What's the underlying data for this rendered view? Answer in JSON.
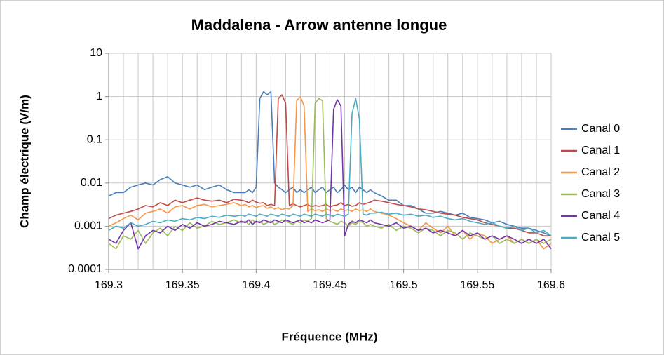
{
  "chart_data": {
    "type": "line",
    "title": "Maddalena - Arrow antenne longue",
    "x_label": "Fréquence (MHz)",
    "y_label": "Champ électrique (V/m)",
    "log_y": true,
    "grid": true,
    "xgrid_step": 0.01,
    "legend": "right",
    "xlim": [
      169.3,
      169.6
    ],
    "xticks": [
      169.3,
      169.35,
      169.4,
      169.45,
      169.5,
      169.55,
      169.6
    ],
    "ylim": [
      0.0001,
      10
    ],
    "yticks": [
      0.0001,
      0.001,
      0.01,
      0.1,
      1,
      10
    ],
    "x": [
      169.3,
      169.305,
      169.31,
      169.315,
      169.32,
      169.325,
      169.33,
      169.335,
      169.34,
      169.345,
      169.35,
      169.355,
      169.36,
      169.365,
      169.37,
      169.375,
      169.38,
      169.385,
      169.39,
      169.3925,
      169.395,
      169.3975,
      169.4,
      169.4025,
      169.405,
      169.4075,
      169.41,
      169.4125,
      169.415,
      169.4175,
      169.42,
      169.4225,
      169.425,
      169.4275,
      169.43,
      169.4325,
      169.435,
      169.4375,
      169.44,
      169.4425,
      169.445,
      169.4475,
      169.45,
      169.4525,
      169.455,
      169.4575,
      169.46,
      169.4625,
      169.465,
      169.4675,
      169.47,
      169.4725,
      169.475,
      169.4775,
      169.48,
      169.485,
      169.49,
      169.495,
      169.5,
      169.505,
      169.51,
      169.515,
      169.52,
      169.525,
      169.53,
      169.535,
      169.54,
      169.545,
      169.55,
      169.555,
      169.56,
      169.565,
      169.57,
      169.575,
      169.58,
      169.585,
      169.59,
      169.595,
      169.6
    ],
    "series": [
      {
        "name": "Canal 0",
        "color": "#4a7ebb",
        "values": [
          0.005,
          0.006,
          0.006,
          0.008,
          0.009,
          0.01,
          0.009,
          0.012,
          0.014,
          0.01,
          0.009,
          0.008,
          0.009,
          0.007,
          0.008,
          0.009,
          0.007,
          0.006,
          0.006,
          0.006,
          0.007,
          0.006,
          0.008,
          0.9,
          1.3,
          1.1,
          1.3,
          0.01,
          0.008,
          0.007,
          0.006,
          0.007,
          0.008,
          0.006,
          0.007,
          0.006,
          0.007,
          0.008,
          0.006,
          0.007,
          0.008,
          0.006,
          0.007,
          0.008,
          0.006,
          0.007,
          0.009,
          0.007,
          0.008,
          0.006,
          0.008,
          0.007,
          0.006,
          0.007,
          0.006,
          0.005,
          0.004,
          0.004,
          0.003,
          0.003,
          0.0025,
          0.002,
          0.002,
          0.0022,
          0.002,
          0.0018,
          0.002,
          0.0016,
          0.0015,
          0.0014,
          0.0012,
          0.0013,
          0.0011,
          0.001,
          0.0009,
          0.0009,
          0.0008,
          0.0007,
          0.0006
        ]
      },
      {
        "name": "Canal 1",
        "color": "#be4b48",
        "values": [
          0.0015,
          0.0018,
          0.002,
          0.0022,
          0.0025,
          0.003,
          0.0028,
          0.0035,
          0.003,
          0.004,
          0.0035,
          0.004,
          0.0045,
          0.004,
          0.0038,
          0.004,
          0.0035,
          0.0042,
          0.004,
          0.0038,
          0.0035,
          0.004,
          0.0036,
          0.0034,
          0.0035,
          0.003,
          0.0032,
          0.003,
          0.9,
          1.1,
          0.7,
          0.003,
          0.0033,
          0.003,
          0.0028,
          0.003,
          0.0032,
          0.0028,
          0.003,
          0.0029,
          0.003,
          0.0032,
          0.0028,
          0.003,
          0.0031,
          0.0035,
          0.003,
          0.0032,
          0.0029,
          0.003,
          0.0035,
          0.0032,
          0.0034,
          0.0036,
          0.004,
          0.0038,
          0.0035,
          0.0032,
          0.003,
          0.0028,
          0.0025,
          0.0024,
          0.0022,
          0.002,
          0.0019,
          0.0018,
          0.0016,
          0.0015,
          0.0014,
          0.0012,
          0.0011,
          0.001,
          0.0009,
          0.0009,
          0.0008,
          0.0007,
          0.0007,
          0.0006,
          0.0006
        ]
      },
      {
        "name": "Canal 2",
        "color": "#f79646",
        "values": [
          0.001,
          0.0012,
          0.0015,
          0.0018,
          0.0014,
          0.002,
          0.0022,
          0.0025,
          0.002,
          0.0028,
          0.003,
          0.0025,
          0.003,
          0.0032,
          0.0028,
          0.003,
          0.0032,
          0.0035,
          0.003,
          0.0032,
          0.0028,
          0.003,
          0.0027,
          0.0029,
          0.003,
          0.0026,
          0.0028,
          0.0025,
          0.0027,
          0.0024,
          0.0026,
          0.0025,
          0.003,
          0.8,
          1.0,
          0.6,
          0.0022,
          0.0025,
          0.0023,
          0.0024,
          0.0022,
          0.0025,
          0.0023,
          0.0024,
          0.0022,
          0.0025,
          0.0023,
          0.0024,
          0.0022,
          0.0025,
          0.0023,
          0.0024,
          0.0022,
          0.0025,
          0.0022,
          0.002,
          0.0018,
          0.0015,
          0.0012,
          0.001,
          0.0008,
          0.0012,
          0.0009,
          0.0007,
          0.001,
          0.0006,
          0.0008,
          0.0005,
          0.0007,
          0.0006,
          0.0004,
          0.0005,
          0.0006,
          0.0004,
          0.0005,
          0.0004,
          0.0005,
          0.0003,
          0.0004
        ]
      },
      {
        "name": "Canal 3",
        "color": "#9bbb59",
        "values": [
          0.0004,
          0.0003,
          0.0006,
          0.0005,
          0.0008,
          0.0004,
          0.0007,
          0.0009,
          0.0006,
          0.001,
          0.0008,
          0.0012,
          0.0009,
          0.001,
          0.0013,
          0.0011,
          0.0012,
          0.0014,
          0.0012,
          0.0013,
          0.0011,
          0.0014,
          0.0012,
          0.0013,
          0.0011,
          0.0012,
          0.0013,
          0.0011,
          0.0012,
          0.0014,
          0.0013,
          0.0012,
          0.0011,
          0.0013,
          0.0012,
          0.0014,
          0.0013,
          0.0015,
          0.7,
          0.9,
          0.8,
          0.0015,
          0.0013,
          0.0012,
          0.0011,
          0.0013,
          0.0012,
          0.001,
          0.0012,
          0.0011,
          0.0013,
          0.0012,
          0.001,
          0.0011,
          0.001,
          0.0009,
          0.0011,
          0.0008,
          0.001,
          0.0009,
          0.0007,
          0.0009,
          0.0008,
          0.0006,
          0.0008,
          0.0007,
          0.0005,
          0.0007,
          0.0006,
          0.0005,
          0.0006,
          0.0004,
          0.0005,
          0.0004,
          0.0005,
          0.0004,
          0.0005,
          0.0004,
          0.0005
        ]
      },
      {
        "name": "Canal 4",
        "color": "#7434a8",
        "values": [
          0.0005,
          0.0004,
          0.0008,
          0.0012,
          0.0003,
          0.0006,
          0.0008,
          0.0007,
          0.001,
          0.0008,
          0.0011,
          0.0009,
          0.0012,
          0.001,
          0.0011,
          0.0013,
          0.0012,
          0.0011,
          0.0013,
          0.0012,
          0.0014,
          0.0011,
          0.0013,
          0.0012,
          0.0014,
          0.0013,
          0.0012,
          0.0014,
          0.0013,
          0.0012,
          0.0014,
          0.0013,
          0.0012,
          0.0013,
          0.0014,
          0.0012,
          0.0013,
          0.0012,
          0.0014,
          0.0013,
          0.0012,
          0.0013,
          0.0014,
          0.5,
          0.85,
          0.6,
          0.0006,
          0.0011,
          0.0013,
          0.0012,
          0.0014,
          0.0013,
          0.0012,
          0.0014,
          0.0012,
          0.0011,
          0.001,
          0.0012,
          0.0009,
          0.001,
          0.0008,
          0.0009,
          0.0007,
          0.0008,
          0.0007,
          0.0006,
          0.0008,
          0.0006,
          0.0007,
          0.0005,
          0.0006,
          0.0005,
          0.0006,
          0.0005,
          0.0004,
          0.0005,
          0.0004,
          0.0005,
          0.0003
        ]
      },
      {
        "name": "Canal 5",
        "color": "#4bacc6",
        "values": [
          0.0008,
          0.001,
          0.0009,
          0.0012,
          0.001,
          0.0011,
          0.0013,
          0.0012,
          0.0014,
          0.0013,
          0.0015,
          0.0014,
          0.0016,
          0.0015,
          0.0017,
          0.0016,
          0.0018,
          0.0017,
          0.0018,
          0.0017,
          0.0019,
          0.0018,
          0.0017,
          0.0019,
          0.0018,
          0.0017,
          0.0019,
          0.0018,
          0.0017,
          0.0019,
          0.0018,
          0.0017,
          0.0019,
          0.0018,
          0.0017,
          0.0019,
          0.0018,
          0.0017,
          0.0019,
          0.0018,
          0.0017,
          0.0019,
          0.0018,
          0.0017,
          0.0019,
          0.0018,
          0.0017,
          0.0019,
          0.4,
          0.9,
          0.3,
          0.0019,
          0.0018,
          0.002,
          0.002,
          0.0021,
          0.0019,
          0.002,
          0.0018,
          0.0019,
          0.0017,
          0.0018,
          0.0016,
          0.0017,
          0.0015,
          0.0014,
          0.0015,
          0.0013,
          0.0012,
          0.0011,
          0.0012,
          0.001,
          0.0009,
          0.001,
          0.0008,
          0.0009,
          0.0007,
          0.0008,
          0.0006
        ]
      }
    ]
  }
}
